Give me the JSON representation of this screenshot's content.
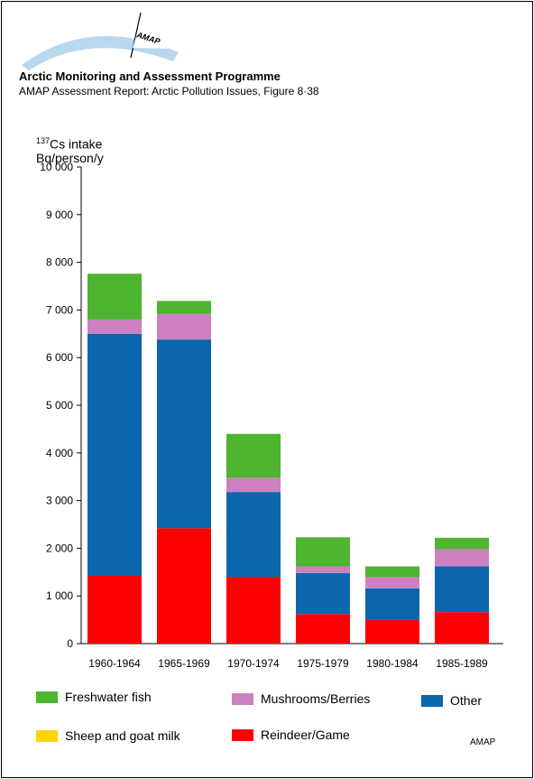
{
  "header": {
    "logo_text": "AMAP",
    "title": "Arctic Monitoring and Assessment Programme",
    "subtitle": "AMAP Assessment Report: Arctic Pollution Issues, Figure 8·38"
  },
  "credit": "AMAP",
  "colors": {
    "freshwater": "#4db52f",
    "mushrooms": "#cc80c0",
    "other": "#0a66ad",
    "sheep": "#ffd400",
    "reindeer": "#ff0000"
  },
  "chart_data": {
    "type": "bar",
    "stacked": true,
    "ylabel_line1_sup": "137",
    "ylabel_line1": "Cs intake",
    "ylabel_line2": "Bq/person/y",
    "ylim": [
      0,
      10000
    ],
    "yticks": [
      0,
      1000,
      2000,
      3000,
      4000,
      5000,
      6000,
      7000,
      8000,
      9000,
      10000
    ],
    "ytick_labels": [
      "0",
      "1 000",
      "2 000",
      "3 000",
      "4 000",
      "5 000",
      "6 000",
      "7 000",
      "8 000",
      "9 000",
      "10 000"
    ],
    "categories": [
      "1960-1964",
      "1965-1969",
      "1970-1974",
      "1975-1979",
      "1980-1984",
      "1985-1989"
    ],
    "series": [
      {
        "key": "reindeer",
        "name": "Reindeer/Game",
        "values": [
          1420,
          2420,
          1400,
          620,
          500,
          660
        ]
      },
      {
        "key": "sheep",
        "name": "Sheep and goat milk",
        "values": [
          0,
          0,
          0,
          0,
          0,
          0
        ]
      },
      {
        "key": "other",
        "name": "Other",
        "values": [
          5080,
          3960,
          1780,
          860,
          660,
          960
        ]
      },
      {
        "key": "mushrooms",
        "name": "Mushrooms/Berries",
        "values": [
          300,
          540,
          300,
          140,
          240,
          360
        ]
      },
      {
        "key": "freshwater",
        "name": "Freshwater fish",
        "values": [
          960,
          270,
          920,
          610,
          220,
          240
        ]
      }
    ],
    "legend_position": "bottom"
  }
}
